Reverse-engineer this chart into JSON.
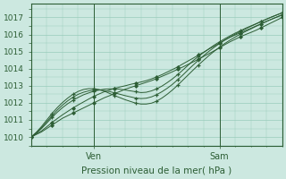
{
  "title": "",
  "xlabel": "Pression niveau de la mer( hPa )",
  "ylabel": "",
  "bg_color": "#cce8e0",
  "grid_color": "#99ccbb",
  "line_color": "#2d5e35",
  "ylim": [
    1009.5,
    1017.8
  ],
  "xlim": [
    0,
    48
  ],
  "xtick_positions": [
    12,
    36
  ],
  "xtick_labels": [
    "Ven",
    "Sam"
  ],
  "ytick_positions": [
    1010,
    1011,
    1012,
    1013,
    1014,
    1015,
    1016,
    1017
  ],
  "n_points": 49,
  "series": [
    [
      1010.0,
      1010.15,
      1010.3,
      1010.5,
      1010.7,
      1010.9,
      1011.1,
      1011.25,
      1011.4,
      1011.55,
      1011.7,
      1011.85,
      1012.0,
      1012.15,
      1012.3,
      1012.42,
      1012.55,
      1012.67,
      1012.8,
      1012.9,
      1013.0,
      1013.1,
      1013.2,
      1013.3,
      1013.42,
      1013.55,
      1013.68,
      1013.82,
      1013.96,
      1014.1,
      1014.25,
      1014.4,
      1014.55,
      1014.72,
      1014.88,
      1015.05,
      1015.22,
      1015.4,
      1015.57,
      1015.72,
      1015.87,
      1016.0,
      1016.12,
      1016.25,
      1016.4,
      1016.55,
      1016.7,
      1016.85,
      1017.0
    ],
    [
      1010.0,
      1010.18,
      1010.36,
      1010.6,
      1010.85,
      1011.08,
      1011.3,
      1011.5,
      1011.7,
      1011.88,
      1012.05,
      1012.22,
      1012.38,
      1012.52,
      1012.65,
      1012.75,
      1012.85,
      1012.93,
      1013.0,
      1013.08,
      1013.15,
      1013.22,
      1013.3,
      1013.4,
      1013.52,
      1013.65,
      1013.8,
      1013.95,
      1014.1,
      1014.28,
      1014.45,
      1014.62,
      1014.8,
      1014.97,
      1015.15,
      1015.32,
      1015.5,
      1015.67,
      1015.83,
      1015.97,
      1016.1,
      1016.23,
      1016.36,
      1016.5,
      1016.63,
      1016.77,
      1016.9,
      1017.02,
      1017.15
    ],
    [
      1010.0,
      1010.22,
      1010.5,
      1010.82,
      1011.15,
      1011.45,
      1011.72,
      1011.95,
      1012.15,
      1012.32,
      1012.47,
      1012.58,
      1012.68,
      1012.75,
      1012.8,
      1012.82,
      1012.82,
      1012.8,
      1012.75,
      1012.7,
      1012.65,
      1012.6,
      1012.62,
      1012.7,
      1012.82,
      1012.98,
      1013.18,
      1013.4,
      1013.65,
      1013.92,
      1014.2,
      1014.48,
      1014.72,
      1014.95,
      1015.17,
      1015.38,
      1015.57,
      1015.75,
      1015.92,
      1016.08,
      1016.22,
      1016.37,
      1016.5,
      1016.63,
      1016.77,
      1016.9,
      1017.03,
      1017.15,
      1017.27
    ],
    [
      1010.0,
      1010.25,
      1010.55,
      1010.9,
      1011.25,
      1011.58,
      1011.87,
      1012.12,
      1012.33,
      1012.5,
      1012.62,
      1012.7,
      1012.75,
      1012.75,
      1012.72,
      1012.66,
      1012.58,
      1012.5,
      1012.42,
      1012.35,
      1012.28,
      1012.25,
      1012.27,
      1012.35,
      1012.48,
      1012.65,
      1012.85,
      1013.08,
      1013.35,
      1013.63,
      1013.93,
      1014.22,
      1014.5,
      1014.77,
      1015.02,
      1015.25,
      1015.47,
      1015.67,
      1015.85,
      1016.02,
      1016.18,
      1016.33,
      1016.48,
      1016.62,
      1016.76,
      1016.9,
      1017.03,
      1017.15,
      1017.27
    ],
    [
      1010.0,
      1010.28,
      1010.62,
      1011.0,
      1011.38,
      1011.72,
      1012.02,
      1012.28,
      1012.5,
      1012.67,
      1012.78,
      1012.83,
      1012.83,
      1012.78,
      1012.68,
      1012.55,
      1012.42,
      1012.3,
      1012.18,
      1012.08,
      1011.98,
      1011.93,
      1011.93,
      1011.98,
      1012.1,
      1012.28,
      1012.5,
      1012.75,
      1013.03,
      1013.33,
      1013.63,
      1013.93,
      1014.22,
      1014.5,
      1014.77,
      1015.02,
      1015.25,
      1015.47,
      1015.67,
      1015.85,
      1016.02,
      1016.18,
      1016.33,
      1016.48,
      1016.62,
      1016.77,
      1016.9,
      1017.03,
      1017.15
    ]
  ],
  "marker_series": [
    2,
    3,
    4
  ],
  "vline_positions": [
    12,
    36
  ],
  "xlabel_fontsize": 7.5,
  "ytick_fontsize": 6.5,
  "xtick_fontsize": 7
}
